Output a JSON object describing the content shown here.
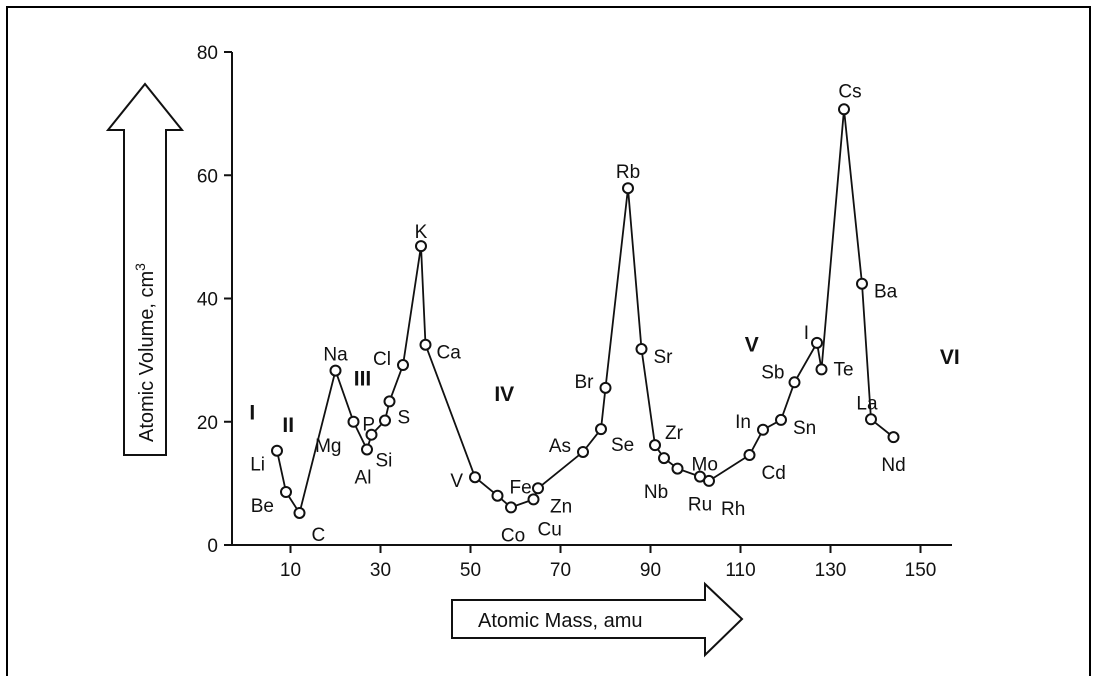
{
  "chart_data": {
    "type": "line",
    "title": "",
    "xlabel": "Atomic Mass, amu",
    "ylabel": "Atomic Volume, cm",
    "ylabel_superscript": "3",
    "xlim": [
      -3,
      157
    ],
    "ylim": [
      0,
      80
    ],
    "x_ticks": [
      10,
      30,
      50,
      70,
      90,
      110,
      130,
      150
    ],
    "y_ticks": [
      0,
      20,
      40,
      60,
      80
    ],
    "grid": false,
    "legend": "none",
    "line_color": "#111111",
    "marker": "open-circle",
    "points": [
      {
        "label": "Li",
        "x": 7,
        "y": 15.3
      },
      {
        "label": "Be",
        "x": 9,
        "y": 8.6
      },
      {
        "label": "C",
        "x": 12,
        "y": 5.2
      },
      {
        "label": "Na",
        "x": 20,
        "y": 28.3
      },
      {
        "label": "Mg",
        "x": 24,
        "y": 20.0
      },
      {
        "label": "Al",
        "x": 27,
        "y": 15.5
      },
      {
        "label": "Si",
        "x": 28,
        "y": 17.9
      },
      {
        "label": "P",
        "x": 31,
        "y": 20.2
      },
      {
        "label": "S",
        "x": 32,
        "y": 23.3
      },
      {
        "label": "Cl",
        "x": 35,
        "y": 29.2
      },
      {
        "label": "K",
        "x": 39,
        "y": 48.5
      },
      {
        "label": "Ca",
        "x": 40,
        "y": 32.5
      },
      {
        "label": "V",
        "x": 51,
        "y": 11.0
      },
      {
        "label": "Fe",
        "x": 56,
        "y": 8.0
      },
      {
        "label": "Co",
        "x": 59,
        "y": 6.1
      },
      {
        "label": "Cu",
        "x": 64,
        "y": 7.4
      },
      {
        "label": "Zn",
        "x": 65,
        "y": 9.2
      },
      {
        "label": "As",
        "x": 75,
        "y": 15.1
      },
      {
        "label": "Se",
        "x": 79,
        "y": 18.8
      },
      {
        "label": "Br",
        "x": 80,
        "y": 25.5
      },
      {
        "label": "Rb",
        "x": 85,
        "y": 57.9
      },
      {
        "label": "Sr",
        "x": 88,
        "y": 31.8
      },
      {
        "label": "Zr",
        "x": 91,
        "y": 16.2
      },
      {
        "label": "Nb",
        "x": 93,
        "y": 14.1
      },
      {
        "label": "Mo",
        "x": 96,
        "y": 12.4
      },
      {
        "label": "Ru",
        "x": 101,
        "y": 11.1
      },
      {
        "label": "Rh",
        "x": 103,
        "y": 10.4
      },
      {
        "label": "Cd",
        "x": 112,
        "y": 14.6
      },
      {
        "label": "In",
        "x": 115,
        "y": 18.7
      },
      {
        "label": "Sn",
        "x": 119,
        "y": 20.3
      },
      {
        "label": "Sb",
        "x": 122,
        "y": 26.4
      },
      {
        "label": "I",
        "x": 127,
        "y": 32.8
      },
      {
        "label": "Te",
        "x": 128,
        "y": 28.5
      },
      {
        "label": "Cs",
        "x": 133,
        "y": 70.7
      },
      {
        "label": "Ba",
        "x": 137,
        "y": 42.4
      },
      {
        "label": "La",
        "x": 139,
        "y": 20.4
      },
      {
        "label": "Nd",
        "x": 144,
        "y": 17.5
      }
    ],
    "period_labels": [
      {
        "label": "I",
        "x": 1.5,
        "y": 21.5
      },
      {
        "label": "II",
        "x": 9.5,
        "y": 19.5
      },
      {
        "label": "III",
        "x": 26,
        "y": 27
      },
      {
        "label": "IV",
        "x": 57.5,
        "y": 24.5
      },
      {
        "label": "V",
        "x": 112.5,
        "y": 32.5
      },
      {
        "label": "VI",
        "x": 156.5,
        "y": 30.5
      }
    ]
  }
}
